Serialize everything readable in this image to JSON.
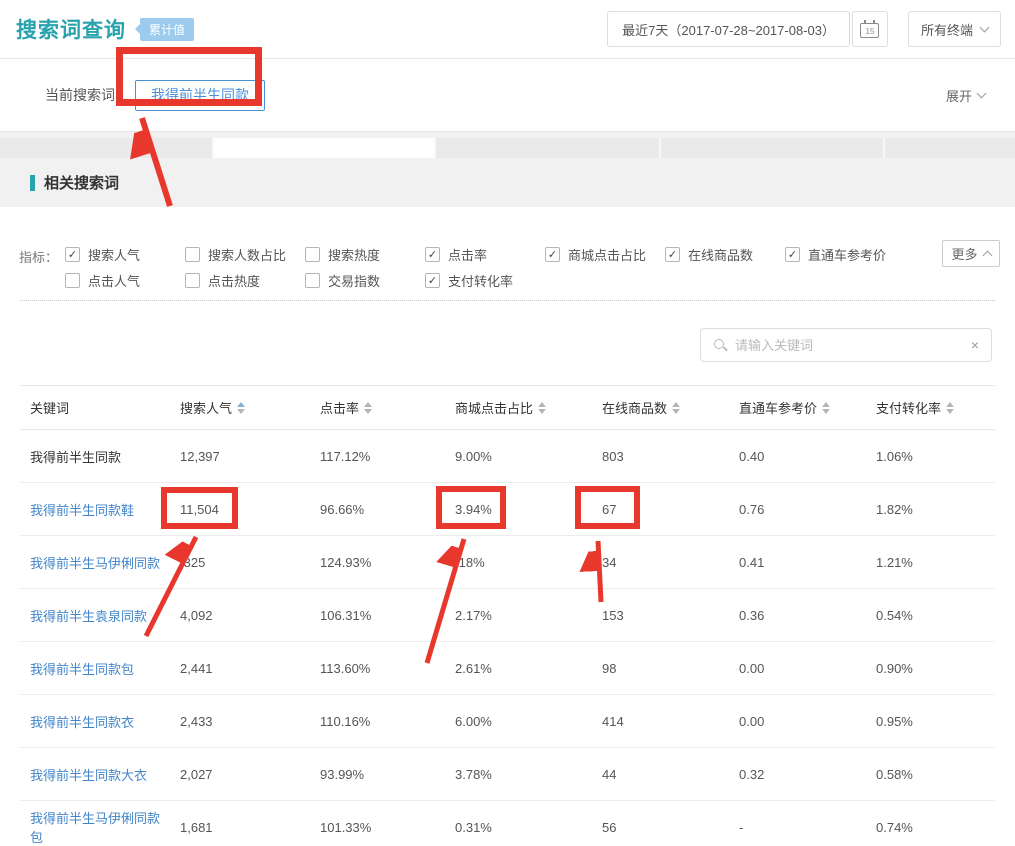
{
  "colors": {
    "accent_teal": "#28A3AE",
    "annotation_red": "#E8382D",
    "link_blue": "#4285C9",
    "tab_blue": "#4A90D9",
    "badge_blue": "#9DCBEE"
  },
  "header": {
    "title": "搜索词查询",
    "badge": "累计值",
    "date_range": "最近7天（2017-07-28~2017-08-03）",
    "calendar_day": "15",
    "terminal": "所有终端"
  },
  "tabs": {
    "current_label": "当前搜索词",
    "keyword_tab": "我得前半生同款",
    "expand": "展开"
  },
  "section": {
    "title": "相关搜索词"
  },
  "metrics": {
    "label": "指标：",
    "more": "更多",
    "row1": [
      {
        "label": "搜索人气",
        "checked": true
      },
      {
        "label": "搜索人数占比",
        "checked": false
      },
      {
        "label": "搜索热度",
        "checked": false
      },
      {
        "label": "点击率",
        "checked": true
      },
      {
        "label": "商城点击占比",
        "checked": true
      },
      {
        "label": "在线商品数",
        "checked": true
      },
      {
        "label": "直通车参考价",
        "checked": true
      }
    ],
    "row2": [
      {
        "label": "点击人气",
        "checked": false
      },
      {
        "label": "点击热度",
        "checked": false
      },
      {
        "label": "交易指数",
        "checked": false
      },
      {
        "label": "支付转化率",
        "checked": true
      }
    ]
  },
  "search": {
    "placeholder": "请输入关键词",
    "clear": "×"
  },
  "table": {
    "columns": [
      {
        "label": "关键词",
        "sortable": false,
        "active": false
      },
      {
        "label": "搜索人气",
        "sortable": true,
        "active": true
      },
      {
        "label": "点击率",
        "sortable": true,
        "active": false
      },
      {
        "label": "商城点击占比",
        "sortable": true,
        "active": false
      },
      {
        "label": "在线商品数",
        "sortable": true,
        "active": false
      },
      {
        "label": "直通车参考价",
        "sortable": true,
        "active": false
      },
      {
        "label": "支付转化率",
        "sortable": true,
        "active": false
      }
    ],
    "rows": [
      {
        "keyword": "我得前半生同款",
        "link": false,
        "values": [
          "12,397",
          "117.12%",
          "9.00%",
          "803",
          "0.40",
          "1.06%"
        ]
      },
      {
        "keyword": "我得前半生同款鞋",
        "link": true,
        "values": [
          "11,504",
          "96.66%",
          "3.94%",
          "67",
          "0.76",
          "1.82%"
        ]
      },
      {
        "keyword": "我得前半生马伊俐同款",
        "link": true,
        "values": [
          ",325",
          "124.93%",
          ".18%",
          "34",
          "0.41",
          "1.21%"
        ]
      },
      {
        "keyword": "我得前半生袁泉同款",
        "link": true,
        "values": [
          "4,092",
          "106.31%",
          "2.17%",
          "153",
          "0.36",
          "0.54%"
        ]
      },
      {
        "keyword": "我得前半生同款包",
        "link": true,
        "values": [
          "2,441",
          "113.60%",
          "2.61%",
          "98",
          "0.00",
          "0.90%"
        ]
      },
      {
        "keyword": "我得前半生同款衣",
        "link": true,
        "values": [
          "2,433",
          "110.16%",
          "6.00%",
          "414",
          "0.00",
          "0.95%"
        ]
      },
      {
        "keyword": "我得前半生同款大衣",
        "link": true,
        "values": [
          "2,027",
          "93.99%",
          "3.78%",
          "44",
          "0.32",
          "0.58%"
        ]
      },
      {
        "keyword": "我得前半生马伊俐同款包",
        "link": true,
        "values": [
          "1,681",
          "101.33%",
          "0.31%",
          "56",
          "-",
          "0.74%"
        ]
      }
    ]
  }
}
